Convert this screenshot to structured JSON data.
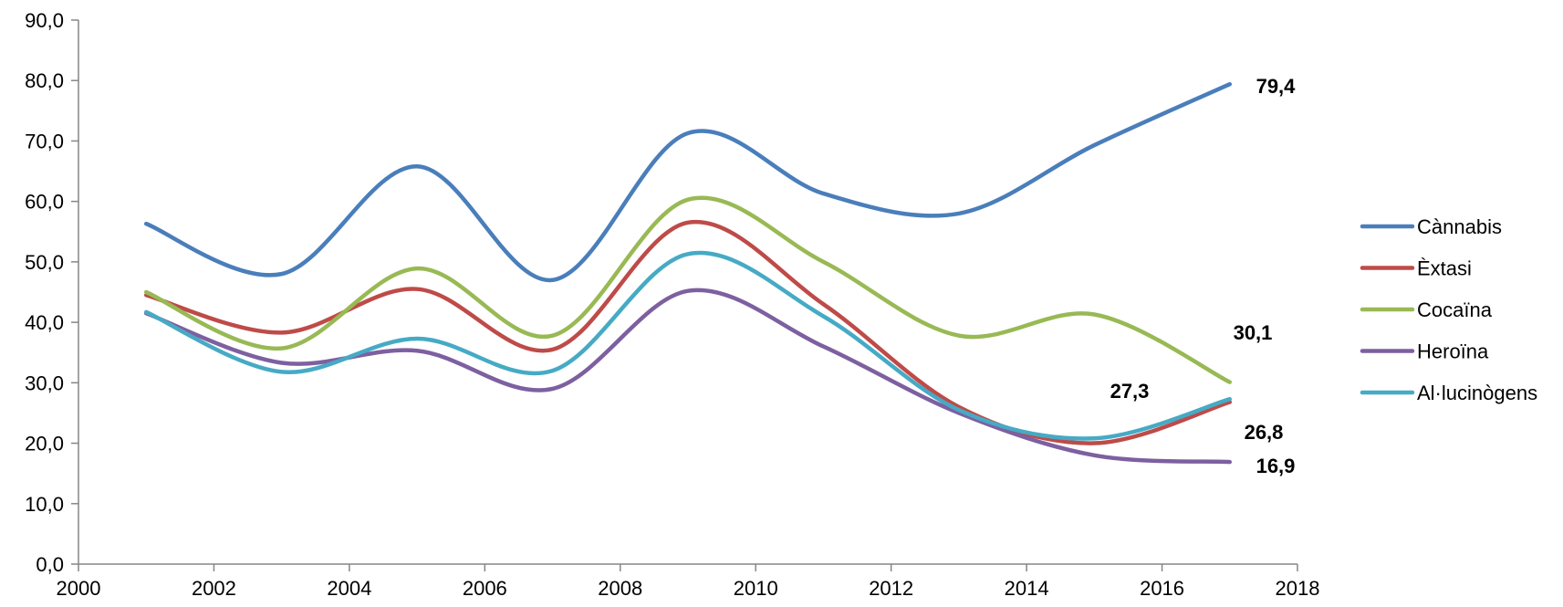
{
  "chart_data": {
    "type": "line",
    "title": "",
    "xlabel": "",
    "ylabel": "",
    "xlim": [
      2000,
      2018
    ],
    "ylim": [
      0,
      90
    ],
    "x_ticks": [
      "2000",
      "2002",
      "2004",
      "2006",
      "2008",
      "2010",
      "2012",
      "2014",
      "2016",
      "2018"
    ],
    "y_ticks": [
      "0,0",
      "10,0",
      "20,0",
      "30,0",
      "40,0",
      "50,0",
      "60,0",
      "70,0",
      "80,0",
      "90,0"
    ],
    "grid": false,
    "legend_position": "right",
    "smooth": true,
    "x": [
      2001,
      2003,
      2005,
      2007,
      2009,
      2011,
      2013,
      2015,
      2017
    ],
    "series": [
      {
        "name": "Cànnabis",
        "color": "#4A7EBB",
        "values": [
          56.3,
          48.0,
          65.8,
          47.0,
          71.3,
          61.3,
          58.0,
          69.3,
          79.4
        ],
        "end_label": "79,4"
      },
      {
        "name": "Èxtasi",
        "color": "#BE4B48",
        "values": [
          44.5,
          38.3,
          45.5,
          35.5,
          56.5,
          43.0,
          26.0,
          20.0,
          26.8
        ],
        "end_label": "26,8"
      },
      {
        "name": "Cocaïna",
        "color": "#98B954",
        "values": [
          45.0,
          35.7,
          48.9,
          37.8,
          60.3,
          50.0,
          37.8,
          41.3,
          30.1
        ],
        "end_label": "30,1"
      },
      {
        "name": "Heroïna",
        "color": "#7D60A0",
        "values": [
          41.5,
          33.3,
          35.3,
          29.0,
          45.2,
          36.0,
          25.0,
          18.0,
          16.9
        ],
        "end_label": "16,9"
      },
      {
        "name": "Al·lucinògens",
        "color": "#46AAC5",
        "values": [
          41.7,
          31.8,
          37.3,
          32.0,
          51.3,
          41.0,
          25.5,
          20.8,
          27.3
        ],
        "end_label": "27,3"
      }
    ]
  }
}
